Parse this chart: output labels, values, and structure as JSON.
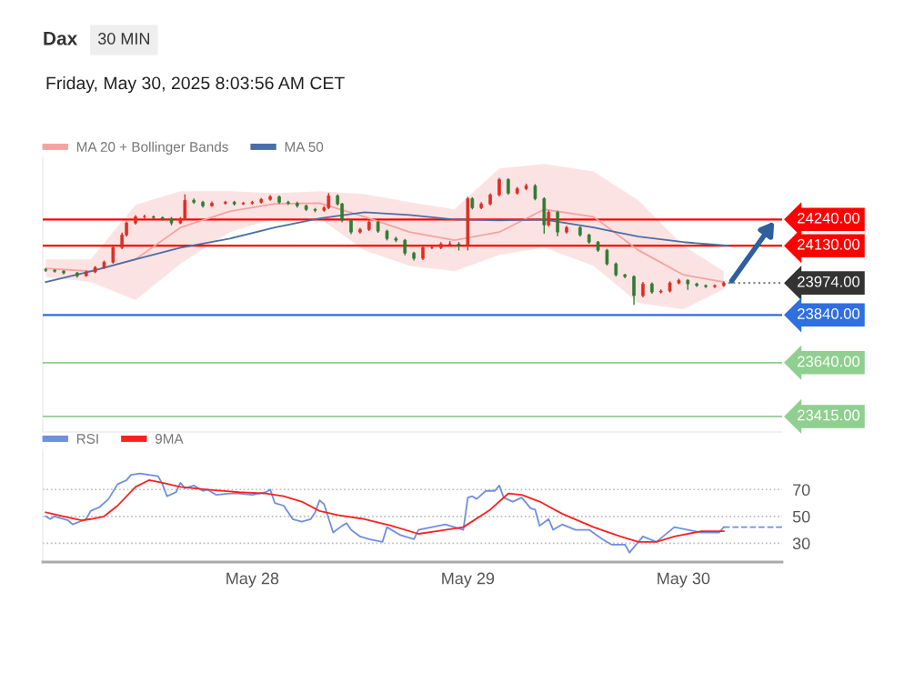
{
  "chart_data": [
    {
      "type": "candlestick",
      "title": "Dax",
      "subtitle": "30 MIN",
      "annotations": [
        "Friday, May 30, 2025 8:03:56 AM CET"
      ],
      "x": [
        "2025-05-27T01:00",
        "2025-05-27T02:00",
        "2025-05-27T03:00",
        "2025-05-27T04:30",
        "2025-05-27T05:30",
        "2025-05-27T06:30",
        "2025-05-27T07:30",
        "2025-05-27T08:30",
        "2025-05-27T09:30",
        "2025-05-27T10:00",
        "2025-05-27T11:00",
        "2025-05-27T12:00",
        "2025-05-27T13:00",
        "2025-05-27T14:00",
        "2025-05-27T15:00",
        "2025-05-27T16:00",
        "2025-05-27T16:30",
        "2025-05-27T17:30",
        "2025-05-27T18:30",
        "2025-05-27T19:30",
        "2025-05-27T21:00",
        "2025-05-27T22:00",
        "2025-05-27T23:00",
        "2025-05-28T00:00",
        "2025-05-28T01:00",
        "2025-05-28T02:00",
        "2025-05-28T03:00",
        "2025-05-28T04:00",
        "2025-05-28T05:00",
        "2025-05-28T06:00",
        "2025-05-28T07:00",
        "2025-05-28T08:00",
        "2025-05-28T08:30",
        "2025-05-28T09:30",
        "2025-05-28T10:00",
        "2025-05-28T11:00",
        "2025-05-28T12:00",
        "2025-05-28T13:00",
        "2025-05-28T14:00",
        "2025-05-28T15:00",
        "2025-05-28T16:00",
        "2025-05-28T17:00",
        "2025-05-28T18:00",
        "2025-05-28T19:00",
        "2025-05-28T20:00",
        "2025-05-28T21:00",
        "2025-05-28T22:00",
        "2025-05-28T23:00",
        "2025-05-29T00:00",
        "2025-05-29T00:30",
        "2025-05-29T01:30",
        "2025-05-29T02:30",
        "2025-05-29T03:30",
        "2025-05-29T04:30",
        "2025-05-29T05:30",
        "2025-05-29T06:30",
        "2025-05-29T07:30",
        "2025-05-29T08:30",
        "2025-05-29T09:00",
        "2025-05-29T10:00",
        "2025-05-29T11:00",
        "2025-05-29T12:30",
        "2025-05-29T13:30",
        "2025-05-29T14:30",
        "2025-05-29T15:30",
        "2025-05-29T16:30",
        "2025-05-29T17:30",
        "2025-05-29T18:30",
        "2025-05-29T19:30",
        "2025-05-29T20:30",
        "2025-05-29T21:30",
        "2025-05-29T22:30",
        "2025-05-29T23:30",
        "2025-05-30T00:30",
        "2025-05-30T01:30",
        "2025-05-30T02:30",
        "2025-05-30T03:30",
        "2025-05-30T04:30"
      ],
      "ohlc": [
        [
          24030,
          24036,
          24020,
          24027
        ],
        [
          24027,
          24032,
          24017,
          24023
        ],
        [
          24023,
          24028,
          24010,
          24016
        ],
        [
          24016,
          24020,
          23996,
          24004
        ],
        [
          24004,
          24026,
          24000,
          24020
        ],
        [
          24020,
          24045,
          24015,
          24039
        ],
        [
          24039,
          24068,
          24033,
          24061
        ],
        [
          24061,
          24130,
          24055,
          24122
        ],
        [
          24122,
          24185,
          24115,
          24175
        ],
        [
          24175,
          24232,
          24168,
          24225
        ],
        [
          24225,
          24258,
          24218,
          24251
        ],
        [
          24251,
          24260,
          24240,
          24251
        ],
        [
          24251,
          24256,
          24240,
          24248
        ],
        [
          24248,
          24252,
          24236,
          24244
        ],
        [
          24244,
          24250,
          24215,
          24225
        ],
        [
          24225,
          24250,
          24220,
          24244
        ],
        [
          24244,
          24345,
          24238,
          24320
        ],
        [
          24320,
          24328,
          24305,
          24312
        ],
        [
          24312,
          24318,
          24290,
          24297
        ],
        [
          24297,
          24315,
          24292,
          24308
        ],
        [
          24308,
          24318,
          24302,
          24312
        ],
        [
          24312,
          24318,
          24298,
          24305
        ],
        [
          24305,
          24314,
          24300,
          24308
        ],
        [
          24308,
          24318,
          24302,
          24312
        ],
        [
          24312,
          24330,
          24306,
          24324
        ],
        [
          24324,
          24342,
          24318,
          24335
        ],
        [
          24335,
          24340,
          24305,
          24312
        ],
        [
          24312,
          24318,
          24300,
          24308
        ],
        [
          24308,
          24314,
          24290,
          24297
        ],
        [
          24297,
          24302,
          24275,
          24282
        ],
        [
          24282,
          24288,
          24270,
          24278
        ],
        [
          24278,
          24296,
          24272,
          24289
        ],
        [
          24289,
          24350,
          24283,
          24339
        ],
        [
          24339,
          24345,
          24298,
          24305
        ],
        [
          24305,
          24310,
          24228,
          24236
        ],
        [
          24236,
          24242,
          24178,
          24187
        ],
        [
          24187,
          24205,
          24180,
          24198
        ],
        [
          24198,
          24236,
          24192,
          24229
        ],
        [
          24229,
          24235,
          24184,
          24191
        ],
        [
          24191,
          24197,
          24152,
          24160
        ],
        [
          24160,
          24168,
          24145,
          24153
        ],
        [
          24153,
          24158,
          24090,
          24099
        ],
        [
          24099,
          24105,
          24068,
          24077
        ],
        [
          24077,
          24130,
          24070,
          24122
        ],
        [
          24122,
          24130,
          24115,
          24122
        ],
        [
          24122,
          24145,
          24115,
          24137
        ],
        [
          24137,
          24150,
          24130,
          24137
        ],
        [
          24137,
          24145,
          24110,
          24130
        ],
        [
          24130,
          24335,
          24110,
          24327
        ],
        [
          24327,
          24333,
          24282,
          24289
        ],
        [
          24289,
          24312,
          24283,
          24305
        ],
        [
          24305,
          24350,
          24298,
          24343
        ],
        [
          24343,
          24414,
          24336,
          24407
        ],
        [
          24407,
          24412,
          24343,
          24350
        ],
        [
          24350,
          24376,
          24344,
          24369
        ],
        [
          24369,
          24390,
          24362,
          24381
        ],
        [
          24381,
          24388,
          24320,
          24327
        ],
        [
          24327,
          24333,
          24180,
          24217
        ],
        [
          24217,
          24278,
          24210,
          24270
        ],
        [
          24270,
          24276,
          24170,
          24187
        ],
        [
          24187,
          24213,
          24180,
          24206
        ],
        [
          24206,
          24212,
          24168,
          24175
        ],
        [
          24175,
          24180,
          24138,
          24145
        ],
        [
          24145,
          24150,
          24104,
          24111
        ],
        [
          24111,
          24117,
          24047,
          24054
        ],
        [
          24054,
          24060,
          24001,
          24008
        ],
        [
          24008,
          24013,
          23994,
          24001
        ],
        [
          24001,
          24006,
          23882,
          23921
        ],
        [
          23921,
          23978,
          23914,
          23970
        ],
        [
          23970,
          23976,
          23929,
          23936
        ],
        [
          23936,
          23947,
          23930,
          23940
        ],
        [
          23940,
          23981,
          23934,
          23974
        ],
        [
          23974,
          23992,
          23968,
          23985
        ],
        [
          23985,
          23990,
          23945,
          23970
        ],
        [
          23970,
          23975,
          23957,
          23963
        ],
        [
          23963,
          23968,
          23953,
          23959
        ],
        [
          23959,
          23968,
          23953,
          23963
        ],
        [
          23963,
          23980,
          23957,
          23974
        ]
      ],
      "colors": [
        "#2e7d32",
        "#2e7d32",
        "#2e7d32",
        "#2e7d32",
        "#d93025",
        "#d93025",
        "#d93025",
        "#d93025",
        "#d93025",
        "#d93025",
        "#d93025",
        "#d93025",
        "#2e7d32",
        "#2e7d32",
        "#2e7d32",
        "#d93025",
        "#d93025",
        "#2e7d32",
        "#2e7d32",
        "#d93025",
        "#d93025",
        "#2e7d32",
        "#d93025",
        "#d93025",
        "#d93025",
        "#d93025",
        "#2e7d32",
        "#2e7d32",
        "#2e7d32",
        "#2e7d32",
        "#2e7d32",
        "#d93025",
        "#d93025",
        "#2e7d32",
        "#2e7d32",
        "#2e7d32",
        "#d93025",
        "#d93025",
        "#2e7d32",
        "#2e7d32",
        "#2e7d32",
        "#2e7d32",
        "#2e7d32",
        "#d93025",
        "#d93025",
        "#d93025",
        "#d93025",
        "#2e7d32",
        "#d93025",
        "#2e7d32",
        "#d93025",
        "#d93025",
        "#d93025",
        "#2e7d32",
        "#d93025",
        "#d93025",
        "#2e7d32",
        "#2e7d32",
        "#d93025",
        "#2e7d32",
        "#d93025",
        "#2e7d32",
        "#2e7d32",
        "#2e7d32",
        "#2e7d32",
        "#2e7d32",
        "#2e7d32",
        "#2e7d32",
        "#d93025",
        "#2e7d32",
        "#d93025",
        "#d93025",
        "#d93025",
        "#2e7d32",
        "#2e7d32",
        "#2e7d32",
        "#d93025",
        "#d93025"
      ],
      "series": [
        {
          "type": "line",
          "name": "MA 20 + Bollinger Bands",
          "color": "#f4a3a3",
          "x": [
            "2025-05-27T01:00",
            "2025-05-27T06:00",
            "2025-05-27T11:00",
            "2025-05-27T16:00",
            "2025-05-27T21:30",
            "2025-05-28T02:30",
            "2025-05-28T07:30",
            "2025-05-28T12:30",
            "2025-05-28T17:30",
            "2025-05-28T22:30",
            "2025-05-29T03:30",
            "2025-05-29T08:30",
            "2025-05-29T14:00",
            "2025-05-29T19:00",
            "2025-05-30T00:00",
            "2025-05-30T04:30"
          ],
          "values": [
            24035,
            24023,
            24073,
            24206,
            24274,
            24305,
            24308,
            24251,
            24187,
            24153,
            24187,
            24282,
            24251,
            24111,
            24008,
            23978
          ],
          "lower": [
            23999,
            23978,
            23902,
            24054,
            24187,
            24244,
            24244,
            24111,
            24046,
            24023,
            24092,
            24122,
            24046,
            23890,
            23864,
            23948
          ],
          "upper": [
            24073,
            24073,
            24301,
            24358,
            24358,
            24350,
            24358,
            24346,
            24312,
            24282,
            24453,
            24472,
            24441,
            24320,
            24130,
            24023
          ]
        },
        {
          "type": "line",
          "name": "MA 50",
          "color": "#4a6fa5",
          "x": [
            "2025-05-27T01:00",
            "2025-05-27T06:00",
            "2025-05-27T11:00",
            "2025-05-27T16:00",
            "2025-05-27T21:30",
            "2025-05-28T02:30",
            "2025-05-28T07:30",
            "2025-05-28T12:30",
            "2025-05-28T17:30",
            "2025-05-28T22:30",
            "2025-05-29T03:30",
            "2025-05-29T08:30",
            "2025-05-29T14:00",
            "2025-05-29T19:00",
            "2025-05-30T00:00",
            "2025-05-30T05:00"
          ],
          "values": [
            23978,
            24023,
            24073,
            24122,
            24160,
            24206,
            24244,
            24270,
            24259,
            24240,
            24236,
            24240,
            24206,
            24168,
            24145,
            24130
          ]
        }
      ],
      "ref_lines": [
        {
          "axis": "y",
          "value": 24240,
          "label": "24240.00",
          "color": "#ff0000",
          "line_style": "solid"
        },
        {
          "axis": "y",
          "value": 24130,
          "label": "24130.00",
          "color": "#ff0000",
          "line_style": "solid"
        },
        {
          "axis": "y",
          "value": 23974,
          "label": "23974.00",
          "color": "#333333",
          "line_style": "dotted"
        },
        {
          "axis": "y",
          "value": 23840,
          "label": "23840.00",
          "color": "#2f6fe0",
          "line_style": "solid"
        },
        {
          "axis": "y",
          "value": 23640,
          "label": "23640.00",
          "color": "#8fcf8f",
          "line_style": "solid"
        },
        {
          "axis": "y",
          "value": 23415,
          "label": "23415.00",
          "color": "#8fcf8f",
          "line_style": "solid"
        }
      ],
      "xlim": [
        "2025-05-27T00:40",
        "2025-05-30T11:00"
      ],
      "ylim": [
        23350,
        24500
      ],
      "legend": "top left",
      "grid": false
    },
    {
      "type": "line",
      "series": [
        {
          "name": "RSI",
          "color": "#6f8fe0",
          "x": [
            "2025-05-27T01:00",
            "2025-05-27T01:30",
            "2025-05-27T02:00",
            "2025-05-27T03:30",
            "2025-05-27T04:00",
            "2025-05-27T05:30",
            "2025-05-27T06:00",
            "2025-05-27T07:00",
            "2025-05-27T08:00",
            "2025-05-27T09:00",
            "2025-05-27T10:00",
            "2025-05-27T10:30",
            "2025-05-27T11:30",
            "2025-05-27T12:30",
            "2025-05-27T13:30",
            "2025-05-27T14:00",
            "2025-05-27T14:30",
            "2025-05-27T15:30",
            "2025-05-27T16:00",
            "2025-05-27T16:30",
            "2025-05-27T17:30",
            "2025-05-27T18:30",
            "2025-05-27T19:00",
            "2025-05-27T20:00",
            "2025-05-27T21:30",
            "2025-05-27T22:30",
            "2025-05-28T00:00",
            "2025-05-28T01:30",
            "2025-05-28T02:00",
            "2025-05-28T02:30",
            "2025-05-28T03:30",
            "2025-05-28T04:30",
            "2025-05-28T05:30",
            "2025-05-28T06:30",
            "2025-05-28T07:00",
            "2025-05-28T07:30",
            "2025-05-28T08:00",
            "2025-05-28T09:00",
            "2025-05-28T10:00",
            "2025-05-28T10:30",
            "2025-05-28T11:00",
            "2025-05-28T12:00",
            "2025-05-28T13:00",
            "2025-05-28T14:30",
            "2025-05-28T15:00",
            "2025-05-28T16:30",
            "2025-05-28T18:00",
            "2025-05-28T18:30",
            "2025-05-28T20:00",
            "2025-05-28T21:30",
            "2025-05-28T22:30",
            "2025-05-28T23:30",
            "2025-05-29T00:00",
            "2025-05-29T00:30",
            "2025-05-29T01:00",
            "2025-05-29T02:00",
            "2025-05-29T03:00",
            "2025-05-29T03:30",
            "2025-05-29T04:00",
            "2025-05-29T05:00",
            "2025-05-29T06:00",
            "2025-05-29T07:00",
            "2025-05-29T07:30",
            "2025-05-29T08:00",
            "2025-05-29T09:00",
            "2025-05-29T09:30",
            "2025-05-29T10:30",
            "2025-05-29T12:00",
            "2025-05-29T13:30",
            "2025-05-29T15:00",
            "2025-05-29T16:00",
            "2025-05-29T17:30",
            "2025-05-29T18:00",
            "2025-05-29T19:30",
            "2025-05-29T21:00",
            "2025-05-29T23:00",
            "2025-05-30T00:30",
            "2025-05-30T02:00",
            "2025-05-30T04:00",
            "2025-05-30T04:30"
          ],
          "values": [
            50,
            48,
            50,
            47,
            44,
            48,
            54,
            57,
            63,
            74,
            77,
            81,
            82,
            81,
            80,
            74,
            65,
            68,
            75,
            71,
            73,
            69,
            70,
            66,
            67,
            67,
            66,
            68,
            70,
            60,
            58,
            48,
            46,
            48,
            53,
            62,
            59,
            38,
            43,
            45,
            40,
            35,
            33,
            31,
            42,
            36,
            33,
            40,
            42,
            44,
            42,
            40,
            64,
            65,
            63,
            69,
            69,
            73,
            64,
            61,
            64,
            56,
            55,
            43,
            48,
            40,
            44,
            40,
            40,
            33,
            29,
            29,
            23,
            35,
            31,
            42,
            40,
            38,
            38,
            42
          ]
        },
        {
          "name": "9MA",
          "color": "#ff2020",
          "x": [
            "2025-05-27T01:00",
            "2025-05-27T03:00",
            "2025-05-27T05:00",
            "2025-05-27T06:00",
            "2025-05-27T07:30",
            "2025-05-27T09:00",
            "2025-05-27T11:00",
            "2025-05-27T12:30",
            "2025-05-27T14:00",
            "2025-05-27T16:00",
            "2025-05-27T19:00",
            "2025-05-27T22:30",
            "2025-05-28T01:30",
            "2025-05-28T03:30",
            "2025-05-28T05:30",
            "2025-05-28T07:30",
            "2025-05-28T09:30",
            "2025-05-28T12:30",
            "2025-05-28T15:30",
            "2025-05-28T18:30",
            "2025-05-28T20:30",
            "2025-05-28T23:30",
            "2025-05-29T02:30",
            "2025-05-29T04:30",
            "2025-05-29T06:00",
            "2025-05-29T08:00",
            "2025-05-29T10:30",
            "2025-05-29T14:00",
            "2025-05-29T17:00",
            "2025-05-29T19:00",
            "2025-05-29T21:00",
            "2025-05-29T23:00",
            "2025-05-30T02:00",
            "2025-05-30T04:30"
          ],
          "values": [
            53,
            50,
            47,
            48,
            50,
            58,
            72,
            77,
            75,
            72,
            70,
            68,
            67,
            65,
            61,
            54,
            51,
            48,
            43,
            37,
            39,
            42,
            55,
            67,
            66,
            61,
            52,
            42,
            35,
            31,
            31,
            35,
            39,
            39
          ]
        },
        {
          "color": "#6f8fe0",
          "line_style": "dashed",
          "x": [
            "2025-05-30T04:30",
            "2025-05-30T11:00"
          ],
          "values": [
            42,
            42
          ]
        }
      ],
      "xlim": [
        "2025-05-27T00:40",
        "2025-05-30T11:00"
      ],
      "xticks": [
        {
          "value": "2025-05-28",
          "label": "May 28"
        },
        {
          "value": "2025-05-29",
          "label": "May 29"
        },
        {
          "value": "2025-05-30",
          "label": "May 30"
        }
      ],
      "ylim": [
        16,
        100
      ],
      "yticks": [
        30,
        50,
        70
      ],
      "grid": "y",
      "legend": "top left"
    }
  ]
}
